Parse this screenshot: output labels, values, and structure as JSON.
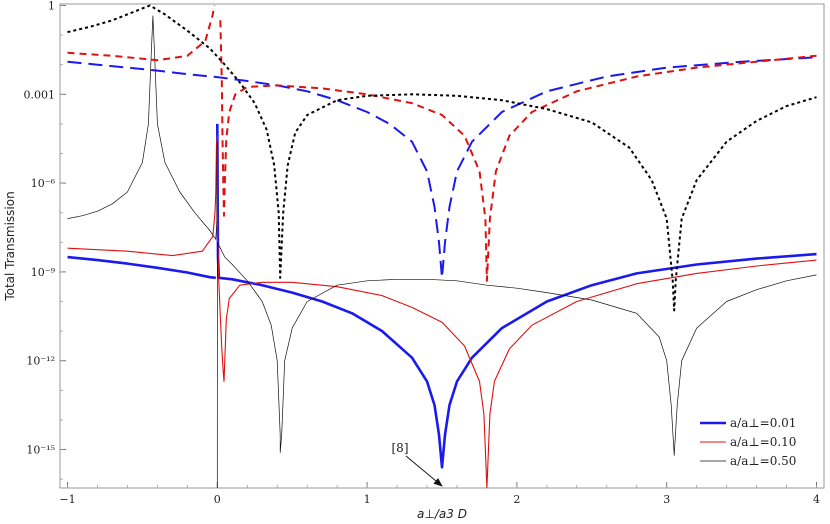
{
  "chart_data": {
    "type": "line",
    "title": "",
    "xlabel": "a⊥/a3 D",
    "ylabel": "Total Transmission",
    "xlim": [
      -1.05,
      4.05
    ],
    "ylim_log10": [
      -16.3,
      0.05
    ],
    "y_scale": "log",
    "x_ticks": [
      -1,
      0,
      1,
      2,
      3,
      4
    ],
    "x_tick_labels": [
      "−1",
      "0",
      "1",
      "2",
      "3",
      "4"
    ],
    "y_ticks_log10": [
      0,
      -3,
      -6,
      -9,
      -12,
      -15
    ],
    "y_tick_labels": [
      "1",
      "0.001",
      "10⁻⁶",
      "10⁻⁹",
      "10⁻¹²",
      "10⁻¹⁵"
    ],
    "legend_position": "bottom-right",
    "legend": [
      {
        "label": "a/a⊥=0.01",
        "color": "#1a1aee",
        "width": 2.6,
        "dash": ""
      },
      {
        "label": "a/a⊥=0.10",
        "color": "#e01010",
        "width": 1.1,
        "dash": ""
      },
      {
        "label": "a/a⊥=0.50",
        "color": "#111111",
        "width": 0.7,
        "dash": ""
      }
    ],
    "annotation": {
      "text": "[8]",
      "arrow_to_x": 1.5,
      "arrow_to_log10y": -16.3
    },
    "series": [
      {
        "name": "a/a⊥=0.01",
        "color": "#1a1aee",
        "width": 2.6,
        "dash": "",
        "segments": [
          [
            [
              -1.0,
              -8.5
            ],
            [
              -0.8,
              -8.6
            ],
            [
              -0.6,
              -8.72
            ],
            [
              -0.4,
              -8.86
            ],
            [
              -0.2,
              -9.02
            ],
            [
              -0.05,
              -9.18
            ],
            [
              -0.01,
              -9.2
            ]
          ],
          [
            [
              0.0,
              -4.0
            ],
            [
              0.005,
              -8.5
            ],
            [
              0.01,
              -9.2
            ],
            [
              0.1,
              -9.25
            ],
            [
              0.3,
              -9.45
            ],
            [
              0.5,
              -9.7
            ],
            [
              0.7,
              -10.0
            ],
            [
              0.9,
              -10.4
            ],
            [
              1.1,
              -11.0
            ],
            [
              1.3,
              -11.9
            ],
            [
              1.4,
              -12.7
            ],
            [
              1.45,
              -13.5
            ],
            [
              1.48,
              -14.5
            ],
            [
              1.5,
              -15.6
            ],
            [
              1.52,
              -14.5
            ],
            [
              1.55,
              -13.5
            ],
            [
              1.6,
              -12.7
            ],
            [
              1.7,
              -11.9
            ],
            [
              1.9,
              -10.9
            ],
            [
              2.2,
              -10.0
            ],
            [
              2.5,
              -9.45
            ],
            [
              2.8,
              -9.05
            ],
            [
              3.2,
              -8.75
            ],
            [
              3.6,
              -8.55
            ],
            [
              4.0,
              -8.4
            ]
          ]
        ]
      },
      {
        "name": "a/a⊥=0.10",
        "color": "#e01010",
        "width": 1.1,
        "dash": "",
        "segments": [
          [
            [
              -1.0,
              -8.2
            ],
            [
              -0.6,
              -8.3
            ],
            [
              -0.3,
              -8.45
            ],
            [
              -0.1,
              -8.3
            ],
            [
              -0.03,
              -7.8
            ],
            [
              -0.015,
              -7.0
            ],
            [
              -0.01,
              -6.3
            ],
            [
              -0.005,
              -4.6
            ]
          ],
          [
            [
              0.0,
              -4.4
            ],
            [
              0.003,
              -8.0
            ],
            [
              0.01,
              -9.3
            ],
            [
              0.02,
              -10.5
            ],
            [
              0.03,
              -11.6
            ],
            [
              0.04,
              -12.4
            ],
            [
              0.045,
              -12.7
            ],
            [
              0.05,
              -12.0
            ],
            [
              0.06,
              -10.6
            ],
            [
              0.08,
              -9.9
            ],
            [
              0.15,
              -9.45
            ],
            [
              0.3,
              -9.35
            ],
            [
              0.5,
              -9.35
            ],
            [
              0.8,
              -9.5
            ],
            [
              1.1,
              -9.8
            ],
            [
              1.3,
              -10.2
            ],
            [
              1.5,
              -10.7
            ],
            [
              1.65,
              -11.5
            ],
            [
              1.75,
              -12.7
            ],
            [
              1.78,
              -13.8
            ],
            [
              1.8,
              -16.3
            ],
            [
              1.82,
              -13.8
            ],
            [
              1.85,
              -12.7
            ],
            [
              1.95,
              -11.6
            ],
            [
              2.1,
              -10.8
            ],
            [
              2.4,
              -10.0
            ],
            [
              2.8,
              -9.4
            ],
            [
              3.2,
              -9.05
            ],
            [
              3.6,
              -8.8
            ],
            [
              4.0,
              -8.6
            ]
          ]
        ]
      },
      {
        "name": "a/a⊥=0.50",
        "color": "#111111",
        "width": 0.7,
        "dash": "",
        "segments": [
          [
            [
              -1.0,
              -7.2
            ],
            [
              -0.9,
              -7.1
            ],
            [
              -0.8,
              -6.95
            ],
            [
              -0.7,
              -6.7
            ],
            [
              -0.6,
              -6.3
            ],
            [
              -0.5,
              -5.3
            ],
            [
              -0.46,
              -4.0
            ],
            [
              -0.44,
              -1.5
            ],
            [
              -0.43,
              -0.35
            ],
            [
              -0.42,
              -1.5
            ],
            [
              -0.4,
              -4.0
            ],
            [
              -0.35,
              -5.3
            ],
            [
              -0.25,
              -6.3
            ],
            [
              -0.15,
              -7.0
            ],
            [
              -0.05,
              -7.6
            ],
            [
              -0.01,
              -7.9
            ],
            [
              -0.003,
              -7.3
            ],
            [
              -0.001,
              -4.6
            ]
          ],
          [
            [
              0.0,
              -16.3
            ],
            [
              0.001,
              -8.0
            ],
            [
              0.05,
              -8.5
            ],
            [
              0.1,
              -8.75
            ],
            [
              0.2,
              -9.3
            ],
            [
              0.3,
              -10.0
            ],
            [
              0.36,
              -10.8
            ],
            [
              0.4,
              -12.0
            ],
            [
              0.42,
              -14.5
            ],
            [
              0.42,
              -15.1
            ],
            [
              0.43,
              -14.5
            ],
            [
              0.45,
              -12.0
            ],
            [
              0.5,
              -10.9
            ],
            [
              0.6,
              -10.0
            ],
            [
              0.8,
              -9.45
            ],
            [
              1.0,
              -9.3
            ],
            [
              1.2,
              -9.25
            ],
            [
              1.4,
              -9.25
            ],
            [
              1.6,
              -9.3
            ],
            [
              1.8,
              -9.45
            ],
            [
              2.0,
              -9.55
            ],
            [
              2.2,
              -9.7
            ],
            [
              2.5,
              -9.95
            ],
            [
              2.8,
              -10.4
            ],
            [
              2.95,
              -11.2
            ],
            [
              3.0,
              -12.0
            ],
            [
              3.03,
              -13.5
            ],
            [
              3.05,
              -15.2
            ],
            [
              3.07,
              -13.5
            ],
            [
              3.1,
              -12.0
            ],
            [
              3.2,
              -10.9
            ],
            [
              3.4,
              -10.0
            ],
            [
              3.6,
              -9.6
            ],
            [
              3.8,
              -9.3
            ],
            [
              4.0,
              -9.1
            ]
          ]
        ]
      },
      {
        "name": "",
        "color": "#1a1aee",
        "width": 2.0,
        "dash": "14,7",
        "segments": [
          [
            [
              -1.0,
              -1.9
            ],
            [
              -0.8,
              -2.0
            ],
            [
              -0.6,
              -2.1
            ],
            [
              -0.4,
              -2.2
            ],
            [
              -0.2,
              -2.32
            ],
            [
              0.0,
              -2.42
            ],
            [
              0.2,
              -2.55
            ],
            [
              0.4,
              -2.7
            ],
            [
              0.6,
              -2.9
            ],
            [
              0.8,
              -3.2
            ],
            [
              1.0,
              -3.6
            ],
            [
              1.15,
              -4.0
            ],
            [
              1.3,
              -4.6
            ],
            [
              1.4,
              -5.6
            ],
            [
              1.45,
              -6.8
            ],
            [
              1.48,
              -8.0
            ],
            [
              1.5,
              -9.2
            ],
            [
              1.52,
              -8.0
            ],
            [
              1.55,
              -6.8
            ],
            [
              1.6,
              -5.6
            ],
            [
              1.7,
              -4.6
            ],
            [
              1.9,
              -3.6
            ],
            [
              2.2,
              -2.9
            ],
            [
              2.6,
              -2.4
            ],
            [
              3.0,
              -2.1
            ],
            [
              3.5,
              -1.9
            ],
            [
              4.0,
              -1.75
            ]
          ]
        ]
      },
      {
        "name": "",
        "color": "#e01010",
        "width": 2.0,
        "dash": "7,5",
        "segments": [
          [
            [
              -1.0,
              -1.6
            ],
            [
              -0.7,
              -1.7
            ],
            [
              -0.4,
              -1.85
            ],
            [
              -0.2,
              -1.7
            ],
            [
              -0.08,
              -1.2
            ],
            [
              -0.03,
              -0.3
            ],
            [
              -0.02,
              0.0
            ]
          ],
          [
            [
              0.02,
              -0.5
            ],
            [
              0.03,
              -2.5
            ],
            [
              0.035,
              -4.5
            ],
            [
              0.04,
              -6.0
            ],
            [
              0.045,
              -7.1
            ],
            [
              0.05,
              -6.0
            ],
            [
              0.06,
              -4.5
            ],
            [
              0.08,
              -3.6
            ],
            [
              0.12,
              -3.0
            ],
            [
              0.2,
              -2.75
            ],
            [
              0.4,
              -2.7
            ],
            [
              0.7,
              -2.8
            ],
            [
              1.0,
              -3.0
            ],
            [
              1.3,
              -3.3
            ],
            [
              1.5,
              -3.7
            ],
            [
              1.65,
              -4.4
            ],
            [
              1.75,
              -5.6
            ],
            [
              1.79,
              -7.2
            ],
            [
              1.8,
              -9.3
            ],
            [
              1.82,
              -7.2
            ],
            [
              1.86,
              -5.6
            ],
            [
              1.95,
              -4.4
            ],
            [
              2.1,
              -3.6
            ],
            [
              2.4,
              -2.9
            ],
            [
              2.8,
              -2.4
            ],
            [
              3.2,
              -2.1
            ],
            [
              3.6,
              -1.9
            ],
            [
              4.0,
              -1.7
            ]
          ]
        ]
      },
      {
        "name": "",
        "color": "#000000",
        "width": 2.0,
        "dash": "3,3",
        "segments": [
          [
            [
              -1.0,
              -0.9
            ],
            [
              -0.85,
              -0.72
            ],
            [
              -0.7,
              -0.5
            ],
            [
              -0.55,
              -0.2
            ],
            [
              -0.45,
              0.0
            ],
            [
              -0.35,
              -0.3
            ],
            [
              -0.2,
              -0.85
            ],
            [
              -0.05,
              -1.45
            ],
            [
              0.05,
              -2.0
            ],
            [
              0.15,
              -2.6
            ],
            [
              0.25,
              -3.3
            ],
            [
              0.33,
              -4.2
            ],
            [
              0.38,
              -5.4
            ],
            [
              0.41,
              -7.0
            ],
            [
              0.42,
              -9.2
            ],
            [
              0.44,
              -7.0
            ],
            [
              0.47,
              -5.4
            ],
            [
              0.52,
              -4.3
            ],
            [
              0.6,
              -3.7
            ],
            [
              0.8,
              -3.2
            ],
            [
              1.0,
              -3.05
            ],
            [
              1.3,
              -3.0
            ],
            [
              1.6,
              -3.05
            ],
            [
              1.9,
              -3.2
            ],
            [
              2.2,
              -3.5
            ],
            [
              2.5,
              -3.95
            ],
            [
              2.75,
              -4.8
            ],
            [
              2.9,
              -5.9
            ],
            [
              3.0,
              -7.2
            ],
            [
              3.04,
              -9.3
            ],
            [
              3.05,
              -10.3
            ],
            [
              3.06,
              -9.3
            ],
            [
              3.1,
              -7.2
            ],
            [
              3.2,
              -5.9
            ],
            [
              3.4,
              -4.6
            ],
            [
              3.6,
              -3.9
            ],
            [
              3.8,
              -3.4
            ],
            [
              4.0,
              -3.1
            ]
          ]
        ]
      }
    ]
  }
}
